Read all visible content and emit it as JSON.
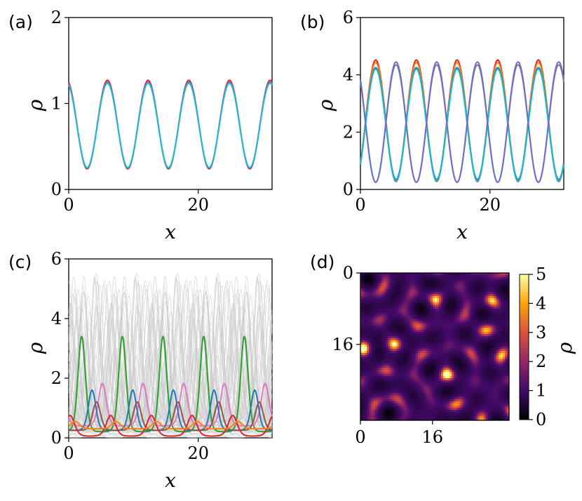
{
  "chart_data": [
    {
      "panel": "(a)",
      "type": "line",
      "xlabel": "x",
      "ylabel": "ρ",
      "xlim": [
        0,
        31.4
      ],
      "ylim": [
        0,
        2
      ],
      "xticks": [
        0,
        20
      ],
      "yticks": [
        0,
        1,
        2
      ],
      "period": 6.28,
      "series": [
        {
          "color": "#d62728",
          "mean": 0.755,
          "amp": 0.515,
          "phase": 5.98
        },
        {
          "color": "#9467bd",
          "mean": 0.75,
          "amp": 0.5,
          "phase": 5.98
        },
        {
          "color": "#17becf",
          "mean": 0.745,
          "amp": 0.49,
          "phase": 5.98
        }
      ]
    },
    {
      "panel": "(b)",
      "type": "line",
      "xlabel": "x",
      "ylabel": "ρ",
      "xlim": [
        0,
        31.4
      ],
      "ylim": [
        0,
        6
      ],
      "xticks": [
        0,
        20
      ],
      "yticks": [
        0,
        2,
        4,
        6
      ],
      "period": 6.28,
      "series": [
        {
          "color": "#d62728",
          "mean": 2.4,
          "amp": 2.12,
          "phase": 2.36
        },
        {
          "color": "#ff7f0e",
          "mean": 2.38,
          "amp": 2.05,
          "phase": 2.36
        },
        {
          "color": "#1f77b4",
          "mean": 2.3,
          "amp": 1.95,
          "phase": 2.36
        },
        {
          "color": "#17becf",
          "mean": 2.25,
          "amp": 1.95,
          "phase": 2.36
        },
        {
          "color": "#7f7f7f",
          "mean": 2.3,
          "amp": 2.05,
          "phase": 5.5
        },
        {
          "color": "#6b6ecf",
          "mean": 2.35,
          "amp": 2.1,
          "phase": 5.5
        }
      ]
    },
    {
      "panel": "(c)",
      "type": "line",
      "xlabel": "x",
      "ylabel": "ρ",
      "xlim": [
        0,
        31.4
      ],
      "ylim": [
        0,
        6
      ],
      "xticks": [
        0,
        20
      ],
      "yticks": [
        0,
        2,
        4,
        6
      ],
      "period": 6.28,
      "background_curves": 60,
      "series": [
        {
          "color": "#2ca02c",
          "base": 0.2,
          "amp": 3.2,
          "phase": 2.0,
          "width": 0.9
        },
        {
          "color": "#e377c2",
          "base": 0.4,
          "amp": 1.42,
          "phase": 5.2,
          "width": 1.0
        },
        {
          "color": "#1f77b4",
          "base": 0.25,
          "amp": 1.35,
          "phase": 3.6,
          "width": 0.9
        },
        {
          "color": "#8c564b",
          "base": 0.25,
          "amp": 0.95,
          "phase": 4.3,
          "width": 1.0
        },
        {
          "color": "#d62728",
          "base": 0.05,
          "amp": 0.7,
          "phase": 0.2,
          "width": 1.3
        },
        {
          "color": "#ff7f0e",
          "base": 0.3,
          "amp": 0.25,
          "phase": 1.0,
          "width": 1.2
        }
      ]
    },
    {
      "panel": "(d)",
      "type": "heatmap",
      "xticks": [
        0,
        16
      ],
      "yticks": [
        0,
        16
      ],
      "extent": 33,
      "colorbar": {
        "label": "ρ",
        "min": 0,
        "max": 5,
        "ticks": [
          0,
          1,
          2,
          3,
          4,
          5
        ]
      },
      "colormap": [
        "#000004",
        "#420a68",
        "#932667",
        "#dd513a",
        "#fca50a",
        "#fcffa4"
      ]
    }
  ]
}
